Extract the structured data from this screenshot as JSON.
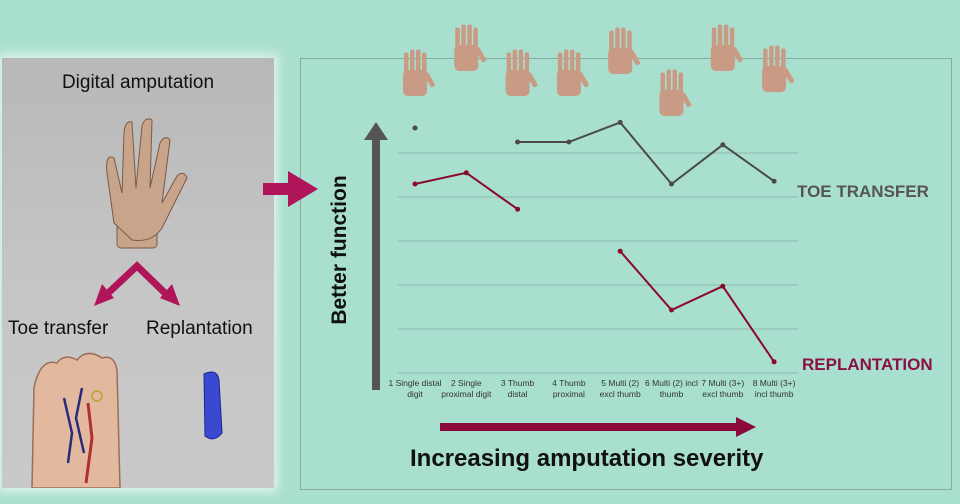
{
  "left_panel": {
    "title": "Digital amputation",
    "toe_transfer_label": "Toe transfer",
    "replantation_label": "Replantation"
  },
  "chart_data": {
    "type": "line",
    "categories": [
      "1 Single distal\ndigit",
      "2 Single\nproximal digit",
      "3 Thumb\ndistal",
      "4 Thumb\nproximal",
      "5 Multi (2)\nexcl thumb",
      "6 Multi (2) incl\nthumb",
      "7 Multi (3+)\nexcl thumb",
      "8 Multi (3+)\nincl thumb"
    ],
    "series": [
      {
        "name": "TOE TRANSFER",
        "values": [
          8.0,
          null,
          7.0,
          7.0,
          8.4,
          4.0,
          6.8,
          4.2
        ]
      },
      {
        "name": "REPLANTATION",
        "values": [
          4.0,
          4.8,
          2.2,
          null,
          -0.8,
          -5.0,
          -3.3,
          -8.7
        ]
      }
    ],
    "ylabel": "Better function",
    "xlabel": "Increasing amputation severity",
    "ylim": [
      -10,
      10
    ],
    "grid": true,
    "colors": {
      "toe": "#4a4a4a",
      "replant": "#8b0a2a",
      "arrow": "#b0155a"
    }
  }
}
